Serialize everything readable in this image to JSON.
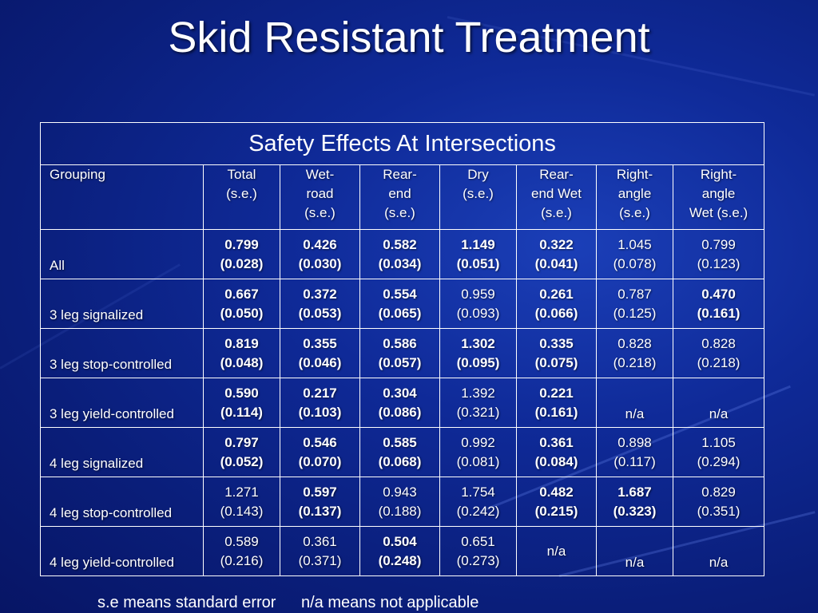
{
  "title": "Skid Resistant Treatment",
  "table": {
    "caption": "Safety Effects At Intersections",
    "headers": [
      [
        "Grouping"
      ],
      [
        "Total",
        "(s.e.)"
      ],
      [
        "Wet-",
        "road",
        "(s.e.)"
      ],
      [
        "Rear-",
        "end",
        "(s.e.)"
      ],
      [
        "Dry",
        "(s.e.)"
      ],
      [
        "Rear-",
        "end Wet",
        "(s.e.)"
      ],
      [
        "Right-",
        "angle",
        "(s.e.)"
      ],
      [
        "Right-",
        "angle",
        "Wet (s.e.)"
      ]
    ],
    "rows": [
      {
        "group": "All",
        "cells": [
          {
            "v": "0.799",
            "se": "(0.028)",
            "b": true
          },
          {
            "v": "0.426",
            "se": "(0.030)",
            "b": true
          },
          {
            "v": "0.582",
            "se": "(0.034)",
            "b": true
          },
          {
            "v": "1.149",
            "se": "(0.051)",
            "b": true
          },
          {
            "v": "0.322",
            "se": "(0.041)",
            "b": true
          },
          {
            "v": "1.045",
            "se": "(0.078)",
            "b": false
          },
          {
            "v": "0.799",
            "se": "(0.123)",
            "b": false
          }
        ]
      },
      {
        "group": "3 leg signalized",
        "cells": [
          {
            "v": "0.667",
            "se": "(0.050)",
            "b": true
          },
          {
            "v": "0.372",
            "se": "(0.053)",
            "b": true
          },
          {
            "v": "0.554",
            "se": "(0.065)",
            "b": true
          },
          {
            "v": "0.959",
            "se": "(0.093)",
            "b": false
          },
          {
            "v": "0.261",
            "se": "(0.066)",
            "b": true
          },
          {
            "v": "0.787",
            "se": "(0.125)",
            "b": false
          },
          {
            "v": "0.470",
            "se": "(0.161)",
            "b": true
          }
        ]
      },
      {
        "group": "3 leg stop-controlled",
        "cells": [
          {
            "v": "0.819",
            "se": "(0.048)",
            "b": true
          },
          {
            "v": "0.355",
            "se": "(0.046)",
            "b": true
          },
          {
            "v": "0.586",
            "se": "(0.057)",
            "b": true
          },
          {
            "v": "1.302",
            "se": "(0.095)",
            "b": true
          },
          {
            "v": "0.335",
            "se": "(0.075)",
            "b": true
          },
          {
            "v": "0.828",
            "se": "(0.218)",
            "b": false
          },
          {
            "v": "0.828",
            "se": "(0.218)",
            "b": false
          }
        ]
      },
      {
        "group": "3 leg yield-controlled",
        "cells": [
          {
            "v": "0.590",
            "se": "(0.114)",
            "b": true
          },
          {
            "v": "0.217",
            "se": "(0.103)",
            "b": true
          },
          {
            "v": "0.304",
            "se": "(0.086)",
            "b": true
          },
          {
            "v": "1.392",
            "se": "(0.321)",
            "b": false
          },
          {
            "v": "0.221",
            "se": "(0.161)",
            "b": true
          },
          {
            "v": "n/a",
            "se": "",
            "b": false
          },
          {
            "v": "n/a",
            "se": "",
            "b": false
          }
        ]
      },
      {
        "group": "4 leg signalized",
        "cells": [
          {
            "v": "0.797",
            "se": "(0.052)",
            "b": true
          },
          {
            "v": "0.546",
            "se": "(0.070)",
            "b": true
          },
          {
            "v": "0.585",
            "se": "(0.068)",
            "b": true
          },
          {
            "v": "0.992",
            "se": "(0.081)",
            "b": false
          },
          {
            "v": "0.361",
            "se": "(0.084)",
            "b": true
          },
          {
            "v": "0.898",
            "se": "(0.117)",
            "b": false
          },
          {
            "v": "1.105",
            "se": "(0.294)",
            "b": false
          }
        ]
      },
      {
        "group": "4 leg stop-controlled",
        "cells": [
          {
            "v": "1.271",
            "se": "(0.143)",
            "b": false
          },
          {
            "v": "0.597",
            "se": "(0.137)",
            "b": true
          },
          {
            "v": "0.943",
            "se": "(0.188)",
            "b": false
          },
          {
            "v": "1.754",
            "se": "(0.242)",
            "b": false
          },
          {
            "v": "0.482",
            "se": "(0.215)",
            "b": true
          },
          {
            "v": "1.687",
            "se": "(0.323)",
            "b": true
          },
          {
            "v": "0.829",
            "se": "(0.351)",
            "b": false
          }
        ]
      },
      {
        "group": "4 leg yield-controlled",
        "cells": [
          {
            "v": "0.589",
            "se": "(0.216)",
            "b": false
          },
          {
            "v": "0.361",
            "se": "(0.371)",
            "b": false
          },
          {
            "v": "0.504",
            "se": "(0.248)",
            "b": true
          },
          {
            "v": "0.651",
            "se": "(0.273)",
            "b": false
          },
          {
            "v": "n/a",
            "se": "",
            "b": false
          },
          {
            "v": "n/a",
            "se": "",
            "b": false
          },
          {
            "v": "n/a",
            "se": "",
            "b": false
          }
        ]
      }
    ]
  },
  "footer": {
    "se_note": "s.e means standard error",
    "na_note": "n/a means not applicable"
  },
  "colors": {
    "background": "#0f2a98",
    "text": "#ffffff",
    "border": "#ffffff"
  }
}
